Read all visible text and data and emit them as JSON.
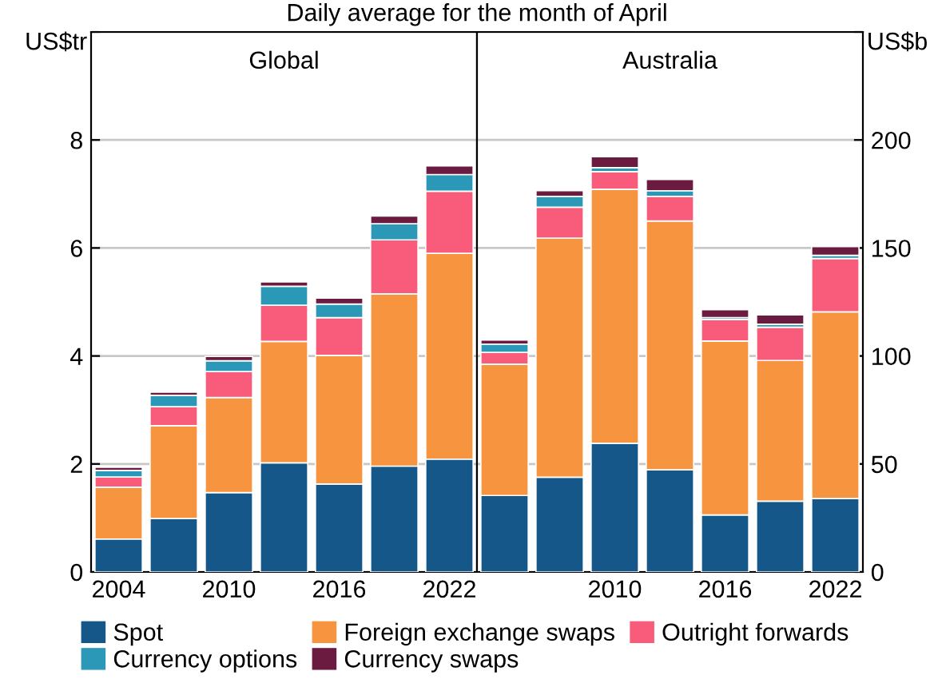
{
  "chart_data": [
    {
      "type": "bar",
      "stacked": true,
      "title": "Daily average for the month of April",
      "subtitle": "Global",
      "ylabel": "US$tr",
      "categories": [
        "2004",
        null,
        "2010",
        null,
        "2016",
        null,
        "2022"
      ],
      "ylim": [
        0,
        10
      ],
      "yticks": [
        0,
        2,
        4,
        6,
        8,
        {
          "value": 10,
          "label": null
        }
      ],
      "grid": "y",
      "legend": "bottom",
      "series": [
        {
          "name": "Spot",
          "color": "#155788",
          "values": [
            0.61,
            0.99,
            1.47,
            2.02,
            1.63,
            1.96,
            2.09
          ]
        },
        {
          "name": "Foreign exchange swaps",
          "color": "#f7943f",
          "values": [
            0.96,
            1.72,
            1.76,
            2.25,
            2.38,
            3.19,
            3.81
          ]
        },
        {
          "name": "Outright forwards",
          "color": "#f95c7a",
          "values": [
            0.19,
            0.35,
            0.48,
            0.67,
            0.7,
            1.0,
            1.15
          ]
        },
        {
          "name": "Currency options",
          "color": "#2a98b6",
          "values": [
            0.12,
            0.21,
            0.2,
            0.35,
            0.25,
            0.3,
            0.31
          ]
        },
        {
          "name": "Currency swaps",
          "color": "#6b1a40",
          "values": [
            0.06,
            0.06,
            0.08,
            0.08,
            0.11,
            0.14,
            0.16
          ]
        }
      ]
    },
    {
      "type": "bar",
      "stacked": true,
      "subtitle": "Australia",
      "ylabel": "US$b",
      "categories": [
        null,
        null,
        "2010",
        null,
        "2016",
        null,
        "2022"
      ],
      "ylim": [
        0,
        250
      ],
      "yticks": [
        0,
        50,
        100,
        150,
        200,
        {
          "value": 250,
          "label": null
        }
      ],
      "grid": "y",
      "series": [
        {
          "color": "#155788",
          "values": [
            35.4,
            43.9,
            59.6,
            47.3,
            26.4,
            32.8,
            34.0
          ]
        },
        {
          "color": "#f7943f",
          "values": [
            60.8,
            110.7,
            117.6,
            115.2,
            80.5,
            65.1,
            86.4
          ]
        },
        {
          "color": "#f95c7a",
          "values": [
            5.5,
            14.3,
            8.1,
            11.4,
            10.0,
            15.4,
            24.7
          ]
        },
        {
          "color": "#2a98b6",
          "values": [
            3.8,
            5.0,
            1.9,
            2.6,
            0.9,
            1.4,
            1.5
          ]
        },
        {
          "color": "#6b1a40",
          "values": [
            1.9,
            2.6,
            5.0,
            5.2,
            3.6,
            4.3,
            4.0
          ]
        }
      ]
    }
  ]
}
